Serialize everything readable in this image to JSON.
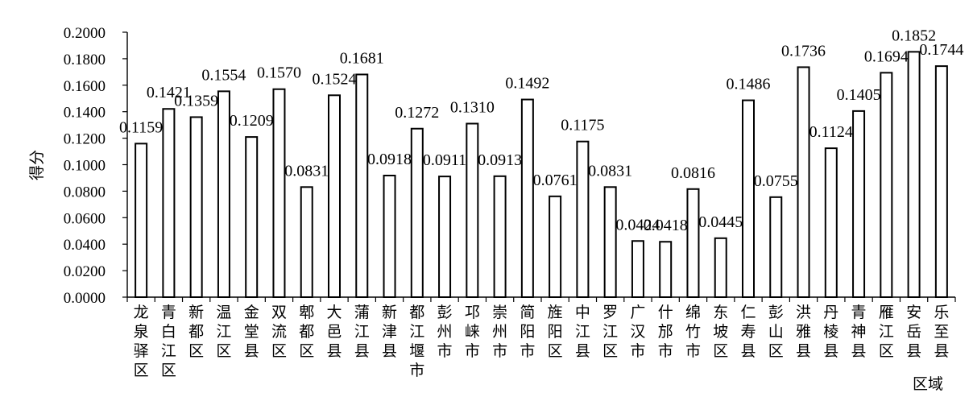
{
  "chart_data": {
    "type": "bar",
    "ylabel": "得分",
    "xlabel": "区域",
    "ylim": [
      0,
      0.2
    ],
    "yticks": [
      "0.0000",
      "0.0200",
      "0.0400",
      "0.0600",
      "0.0800",
      "0.1000",
      "0.1200",
      "0.1400",
      "0.1600",
      "0.1800",
      "0.2000"
    ],
    "grid": false,
    "categories": [
      "龙泉驿区",
      "青白江区",
      "新都区",
      "温江区",
      "金堂县",
      "双流区",
      "郫都区",
      "大邑县",
      "蒲江县",
      "新津县",
      "都江堰市",
      "彭州市",
      "邛崃市",
      "崇州市",
      "简阳市",
      "旌阳区",
      "中江县",
      "罗江区",
      "广汉市",
      "什邡市",
      "绵竹市",
      "东坡区",
      "仁寿县",
      "彭山区",
      "洪雅县",
      "丹棱县",
      "青神县",
      "雁江区",
      "安岳县",
      "乐至县"
    ],
    "values": [
      0.1159,
      0.1421,
      0.1359,
      0.1554,
      0.1209,
      0.157,
      0.0831,
      0.1524,
      0.1681,
      0.0918,
      0.1272,
      0.0911,
      0.131,
      0.0913,
      0.1492,
      0.0761,
      0.1175,
      0.0831,
      0.0424,
      0.0418,
      0.0816,
      0.0445,
      0.1486,
      0.0755,
      0.1736,
      0.1124,
      0.1405,
      0.1694,
      0.1852,
      0.1744
    ],
    "data_labels": [
      "0.1159",
      "0.1421",
      "0.1359",
      "0.1554",
      "0.1209",
      "0.1570",
      "0.0831",
      "0.1524",
      "0.1681",
      "0.0918",
      "0.1272",
      "0.0911",
      "0.1310",
      "0.0913",
      "0.1492",
      "0.0761",
      "0.1175",
      "0.0831",
      "0.0424",
      "0.0418",
      "0.0816",
      "0.0445",
      "0.1486",
      "0.0755",
      "0.1736",
      "0.1124",
      "0.1405",
      "0.1694",
      "0.1852",
      "0.1744"
    ],
    "bar_fill": "#ffffff",
    "bar_stroke": "#000000"
  }
}
